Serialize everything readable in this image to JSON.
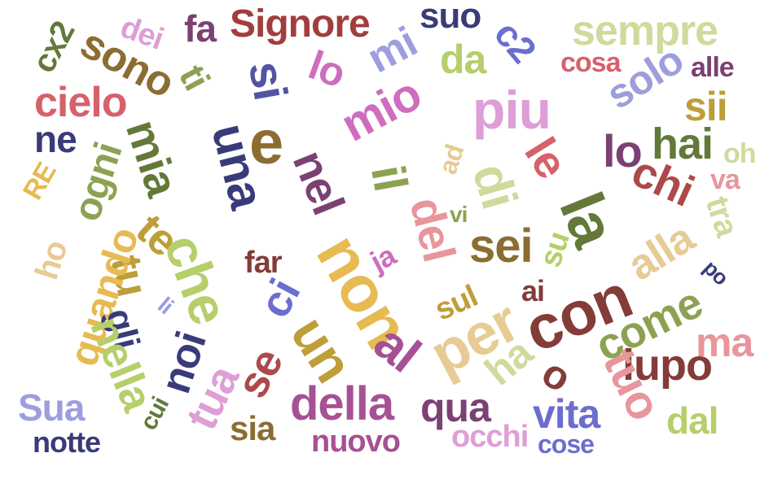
{
  "words": [
    {
      "text": "Signore",
      "color": "#a23d3f"
    },
    {
      "text": "fa",
      "color": "#7b4173"
    },
    {
      "text": "suo",
      "color": "#393b79"
    },
    {
      "text": "sempre",
      "color": "#cedb9c"
    },
    {
      "text": "dei",
      "color": "#de9ed6"
    },
    {
      "text": "c2",
      "color": "#6b6ecf"
    },
    {
      "text": "sono",
      "color": "#8c6d31"
    },
    {
      "text": "cx2",
      "color": "#637939"
    },
    {
      "text": "ti",
      "color": "#8ca252"
    },
    {
      "text": "si",
      "color": "#5254a3"
    },
    {
      "text": "lo",
      "color": "#ce6dbd"
    },
    {
      "text": "mi",
      "color": "#9c9ede"
    },
    {
      "text": "da",
      "color": "#b5cf6b"
    },
    {
      "text": "cosa",
      "color": "#d6616b"
    },
    {
      "text": "alle",
      "color": "#7b4173"
    },
    {
      "text": "cielo",
      "color": "#d6616b"
    },
    {
      "text": "solo",
      "color": "#9c9ede"
    },
    {
      "text": "sii",
      "color": "#bd9e39"
    },
    {
      "text": "piu",
      "color": "#de9ed6"
    },
    {
      "text": "mio",
      "color": "#ce6dbd"
    },
    {
      "text": "e",
      "color": "#8c6d31"
    },
    {
      "text": "ne",
      "color": "#393b79"
    },
    {
      "text": "lo",
      "color": "#7b4173"
    },
    {
      "text": "hai",
      "color": "#637939"
    },
    {
      "text": "oh",
      "color": "#cedb9c"
    },
    {
      "text": "mia",
      "color": "#637939"
    },
    {
      "text": "una",
      "color": "#393b79"
    },
    {
      "text": "nel",
      "color": "#7b4173"
    },
    {
      "text": "il",
      "color": "#8ca252"
    },
    {
      "text": "le",
      "color": "#d6616b"
    },
    {
      "text": "chi",
      "color": "#ad494a"
    },
    {
      "text": "va",
      "color": "#e7969c"
    },
    {
      "text": "ogni",
      "color": "#8ca252"
    },
    {
      "text": "ad",
      "color": "#e7cb94"
    },
    {
      "text": "di",
      "color": "#cedb9c"
    },
    {
      "text": "RE",
      "color": "#e7ba52"
    },
    {
      "text": "la",
      "color": "#637939"
    },
    {
      "text": "tra",
      "color": "#cedb9c"
    },
    {
      "text": "vi",
      "color": "#8ca252"
    },
    {
      "text": "del",
      "color": "#e7969c"
    },
    {
      "text": "te",
      "color": "#bd9e39"
    },
    {
      "text": "sei",
      "color": "#8c6d31"
    },
    {
      "text": "su",
      "color": "#b5cf6b"
    },
    {
      "text": "ho",
      "color": "#e7cb94"
    },
    {
      "text": "far",
      "color": "#843c39"
    },
    {
      "text": "ja",
      "color": "#ce6dbd"
    },
    {
      "text": "alla",
      "color": "#e7cb94"
    },
    {
      "text": "po",
      "color": "#393b79"
    },
    {
      "text": "che",
      "color": "#b5cf6b"
    },
    {
      "text": "non",
      "color": "#e7ba52"
    },
    {
      "text": "tu",
      "color": "#bd9e39"
    },
    {
      "text": "ci",
      "color": "#6b6ecf"
    },
    {
      "text": "ai",
      "color": "#843c39"
    },
    {
      "text": "quando",
      "color": "#e7ba52"
    },
    {
      "text": "con",
      "color": "#843c39"
    },
    {
      "text": "sul",
      "color": "#bd9e39"
    },
    {
      "text": "per",
      "color": "#e7cb94"
    },
    {
      "text": "come",
      "color": "#8ca252"
    },
    {
      "text": "li",
      "color": "#9c9ede"
    },
    {
      "text": "ma",
      "color": "#e7969c"
    },
    {
      "text": "gli",
      "color": "#393b79"
    },
    {
      "text": "un",
      "color": "#bd9e39"
    },
    {
      "text": "al",
      "color": "#a55194"
    },
    {
      "text": "lupo",
      "color": "#843c39"
    },
    {
      "text": "nella",
      "color": "#b5cf6b"
    },
    {
      "text": "noi",
      "color": "#393b79"
    },
    {
      "text": "se",
      "color": "#ad494a"
    },
    {
      "text": "ha",
      "color": "#cedb9c"
    },
    {
      "text": "o",
      "color": "#843c39"
    },
    {
      "text": "tuo",
      "color": "#e7969c"
    },
    {
      "text": "tua",
      "color": "#de9ed6"
    },
    {
      "text": "della",
      "color": "#a55194"
    },
    {
      "text": "qua",
      "color": "#7b4173"
    },
    {
      "text": "vita",
      "color": "#6b6ecf"
    },
    {
      "text": "Sua",
      "color": "#9c9ede"
    },
    {
      "text": "dal",
      "color": "#b5cf6b"
    },
    {
      "text": "cui",
      "color": "#637939"
    },
    {
      "text": "sia",
      "color": "#8c6d31"
    },
    {
      "text": "occhi",
      "color": "#de9ed6"
    },
    {
      "text": "notte",
      "color": "#393b79"
    },
    {
      "text": "nuovo",
      "color": "#a55194"
    },
    {
      "text": "cose",
      "color": "#6b6ecf"
    }
  ]
}
